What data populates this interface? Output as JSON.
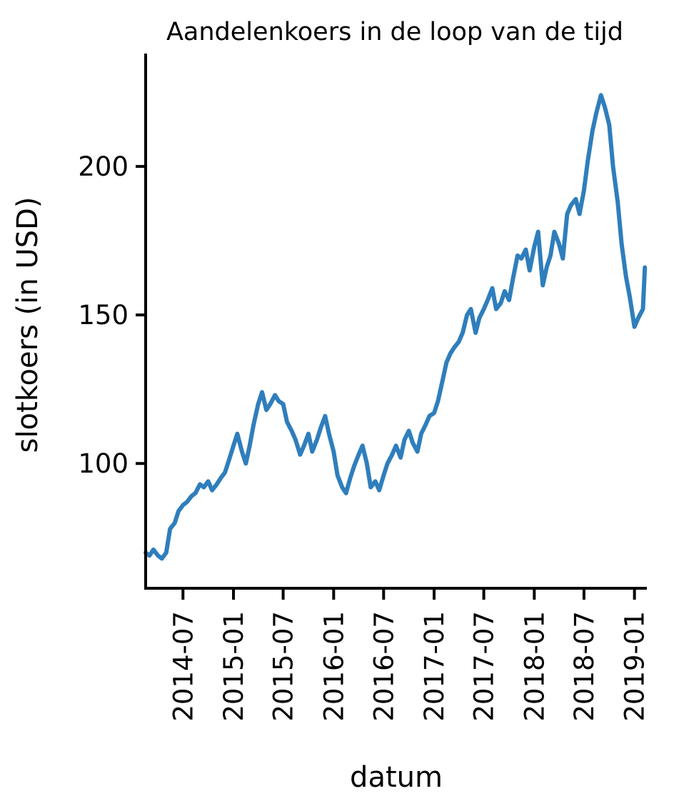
{
  "chart_data": {
    "type": "line",
    "title": "Aandelenkoers in de loop van de tijd",
    "xlabel": "datum",
    "ylabel": "slotkoers (in USD)",
    "x_ticks": [
      "2014-07",
      "2015-01",
      "2015-07",
      "2016-01",
      "2016-07",
      "2017-01",
      "2017-07",
      "2018-01",
      "2018-07",
      "2019-01"
    ],
    "y_ticks": [
      100,
      150,
      200
    ],
    "xlim": [
      "2014-02-15",
      "2019-02-10"
    ],
    "ylim": [
      58,
      238
    ],
    "grid": false,
    "line_color": "#2f7ebc",
    "series": [
      {
        "x": [
          "2014-02-15",
          "2014-03-01",
          "2014-03-15",
          "2014-04-01",
          "2014-04-15",
          "2014-05-01",
          "2014-05-15",
          "2014-06-01",
          "2014-06-15",
          "2014-07-01",
          "2014-07-15",
          "2014-08-01",
          "2014-08-15",
          "2014-09-01",
          "2014-09-15",
          "2014-10-01",
          "2014-10-15",
          "2014-11-01",
          "2014-11-15",
          "2014-12-01",
          "2014-12-15",
          "2015-01-01",
          "2015-01-15",
          "2015-02-01",
          "2015-02-15",
          "2015-03-01",
          "2015-03-15",
          "2015-04-01",
          "2015-04-15",
          "2015-05-01",
          "2015-05-15",
          "2015-06-01",
          "2015-06-15",
          "2015-07-01",
          "2015-07-15",
          "2015-08-01",
          "2015-08-15",
          "2015-09-01",
          "2015-09-15",
          "2015-10-01",
          "2015-10-15",
          "2015-11-01",
          "2015-11-15",
          "2015-12-01",
          "2015-12-15",
          "2016-01-01",
          "2016-01-15",
          "2016-02-01",
          "2016-02-15",
          "2016-03-01",
          "2016-03-15",
          "2016-04-01",
          "2016-04-15",
          "2016-05-01",
          "2016-05-15",
          "2016-06-01",
          "2016-06-15",
          "2016-07-01",
          "2016-07-15",
          "2016-08-01",
          "2016-08-15",
          "2016-09-01",
          "2016-09-15",
          "2016-10-01",
          "2016-10-15",
          "2016-11-01",
          "2016-11-15",
          "2016-12-01",
          "2016-12-15",
          "2017-01-01",
          "2017-01-15",
          "2017-02-01",
          "2017-02-15",
          "2017-03-01",
          "2017-03-15",
          "2017-04-01",
          "2017-04-15",
          "2017-05-01",
          "2017-05-15",
          "2017-06-01",
          "2017-06-15",
          "2017-07-01",
          "2017-07-15",
          "2017-08-01",
          "2017-08-15",
          "2017-09-01",
          "2017-09-15",
          "2017-10-01",
          "2017-10-15",
          "2017-11-01",
          "2017-11-15",
          "2017-12-01",
          "2017-12-15",
          "2018-01-01",
          "2018-01-15",
          "2018-02-01",
          "2018-02-15",
          "2018-03-01",
          "2018-03-15",
          "2018-04-01",
          "2018-04-15",
          "2018-05-01",
          "2018-05-15",
          "2018-06-01",
          "2018-06-15",
          "2018-07-01",
          "2018-07-15",
          "2018-08-01",
          "2018-08-15",
          "2018-09-01",
          "2018-09-15",
          "2018-10-01",
          "2018-10-15",
          "2018-11-01",
          "2018-11-15",
          "2018-12-01",
          "2018-12-15",
          "2019-01-01",
          "2019-01-15",
          "2019-02-01",
          "2019-02-08"
        ],
        "y": [
          70,
          69,
          71,
          69,
          68,
          70,
          78,
          80,
          84,
          86,
          87,
          89,
          90,
          93,
          92,
          94,
          91,
          93,
          95,
          97,
          101,
          106,
          110,
          104,
          100,
          106,
          113,
          120,
          124,
          118,
          120,
          123,
          121,
          120,
          114,
          111,
          108,
          103,
          106,
          110,
          104,
          108,
          112,
          116,
          110,
          104,
          96,
          92,
          90,
          95,
          99,
          103,
          106,
          100,
          92,
          94,
          91,
          96,
          100,
          103,
          106,
          102,
          108,
          111,
          107,
          104,
          110,
          113,
          116,
          117,
          121,
          128,
          134,
          137,
          139,
          141,
          144,
          150,
          152,
          144,
          149,
          152,
          155,
          159,
          152,
          154,
          158,
          155,
          162,
          170,
          169,
          172,
          165,
          173,
          178,
          160,
          166,
          170,
          178,
          174,
          169,
          184,
          187,
          189,
          184,
          192,
          202,
          212,
          218,
          224,
          220,
          214,
          200,
          188,
          174,
          163,
          156,
          146,
          149,
          152,
          166
        ]
      }
    ]
  }
}
